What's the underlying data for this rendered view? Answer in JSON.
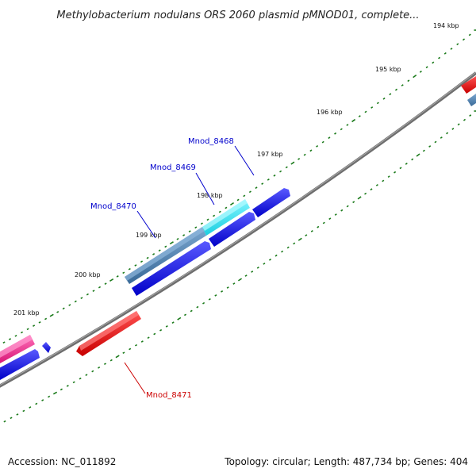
{
  "title": "Methylobacterium nodulans ORS 2060 plasmid pMNOD01, complete...",
  "footer": {
    "accession": "Accession: NC_011892",
    "summary": "Topology: circular; Length: 487,734 bp; Genes: 404"
  },
  "ticks": [
    "194 kbp",
    "195 kbp",
    "196 kbp",
    "197 kbp",
    "198 kbp",
    "199 kbp",
    "200 kbp",
    "201 kbp"
  ],
  "genes": [
    {
      "label": "Mnod_8468",
      "color": "#0000cc"
    },
    {
      "label": "Mnod_8469",
      "color": "#0000cc"
    },
    {
      "label": "Mnod_8470",
      "color": "#0000cc"
    },
    {
      "label": "Mnod_8471",
      "color": "#cc0000"
    }
  ],
  "colors": {
    "backbone": "#808080",
    "tick_dots": "#1a7a1a",
    "forward_cds": "#1a1ae6",
    "highlight_cds": "#2bd9e6",
    "steel_cds": "#4a7fb0",
    "reverse_cds": "#e60000",
    "pink_cds": "#e6308a"
  }
}
